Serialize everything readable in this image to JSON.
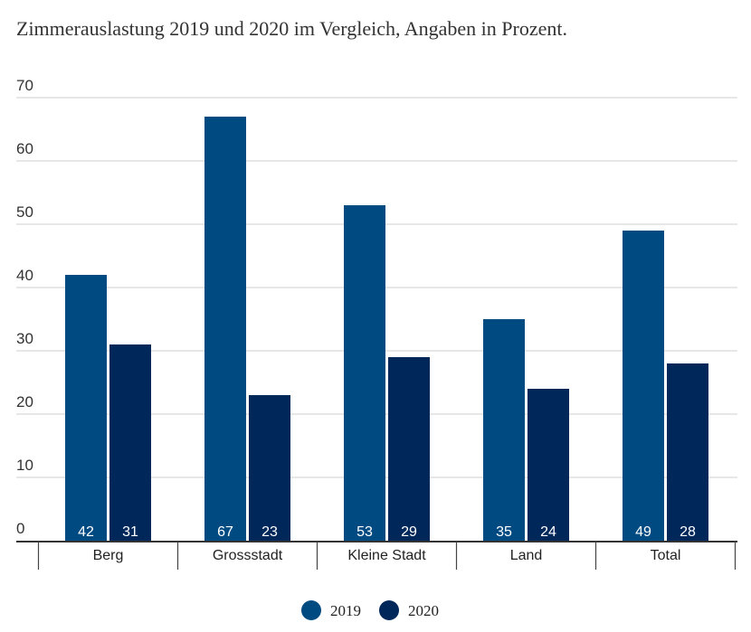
{
  "chart_data": {
    "type": "bar",
    "title": "Zimmerauslastung 2019 und 2020 im Vergleich, Angaben in Prozent.",
    "categories": [
      "Berg",
      "Grossstadt",
      "Kleine Stadt",
      "Land",
      "Total"
    ],
    "series": [
      {
        "name": "2019",
        "values": [
          42,
          67,
          53,
          35,
          49
        ],
        "color": "#004a82"
      },
      {
        "name": "2020",
        "values": [
          31,
          23,
          29,
          24,
          28
        ],
        "color": "#00275a"
      }
    ],
    "ylim": [
      0,
      70
    ],
    "yticks": [
      0,
      10,
      20,
      30,
      40,
      50,
      60,
      70
    ],
    "grid": true,
    "data_labels": "inside-bottom",
    "legend_position": "bottom-center"
  }
}
